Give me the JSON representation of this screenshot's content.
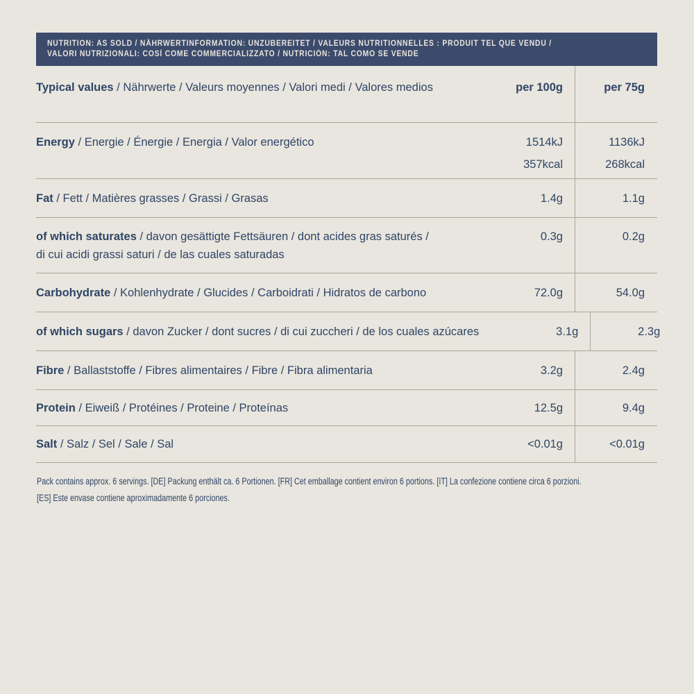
{
  "colors": {
    "background": "#e9e6df",
    "bar_background": "#3c4b6c",
    "bar_text": "#e7e4dc",
    "body_text": "#2f4566",
    "rule_line": "#a9a69d"
  },
  "header_bar": {
    "line1": "NUTRITION: AS SOLD / NÄHRWERTINFORMATION: UNZUBEREITET / VALEURS NUTRITIONNELLES : PRODUIT TEL QUE VENDU /",
    "line2": "VALORI NUTRIZIONALI: COSÌ COME COMMERCIALIZZATO / NUTRICIÓN: TAL COMO SE VENDE"
  },
  "table": {
    "header": {
      "title_bold": "Typical values",
      "title_rest": " / Nährwerte / Valeurs moyennes / Valori medi / Valores medios",
      "per100": "per 100g",
      "per75": "per 75g"
    },
    "rows": [
      {
        "name": "energy",
        "bold": "Energy",
        "rest": " / Energie / Énergie / Energia / Valor energético",
        "per100_line1": "1514kJ",
        "per100_line2": "357kcal",
        "per75_line1": "1136kJ",
        "per75_line2": "268kcal"
      },
      {
        "name": "fat",
        "bold": "Fat",
        "rest": " / Fett / Matières grasses / Grassi / Grasas",
        "per100": "1.4g",
        "per75": "1.1g"
      },
      {
        "name": "saturates",
        "bold": "of which saturates",
        "rest_line1": " / davon gesättigte Fettsäuren / dont acides gras saturés /",
        "rest_line2": "di cui acidi grassi saturi / de las cuales saturadas",
        "per100": "0.3g",
        "per75": "0.2g"
      },
      {
        "name": "carbohydrate",
        "bold": "Carbohydrate",
        "rest": " / Kohlenhydrate / Glucides / Carboidrati / Hidratos de carbono",
        "per100": "72.0g",
        "per75": "54.0g"
      },
      {
        "name": "sugars",
        "bold": "of which sugars",
        "rest": " / davon Zucker / dont sucres / di cui zuccheri / de los cuales azúcares",
        "per100": "3.1g",
        "per75": "2.3g"
      },
      {
        "name": "fibre",
        "bold": "Fibre",
        "rest": " / Ballaststoffe / Fibres alimentaires / Fibre / Fibra alimentaria",
        "per100": "3.2g",
        "per75": "2.4g"
      },
      {
        "name": "protein",
        "bold": "Protein",
        "rest": " / Eiweiß / Protéines / Proteine / Proteínas",
        "per100": "12.5g",
        "per75": "9.4g"
      },
      {
        "name": "salt",
        "bold": "Salt",
        "rest": " / Salz / Sel / Sale / Sal",
        "per100": "<0.01g",
        "per75": "<0.01g"
      }
    ]
  },
  "footer": {
    "line1": "Pack contains approx. 6 servings. [DE] Packung enthält ca. 6 Portionen. [FR] Cet emballage contient environ 6 portions. [IT] La confezione contiene circa 6 porzioni.",
    "line2": "[ES] Este envase contiene aproximadamente 6 porciones."
  }
}
